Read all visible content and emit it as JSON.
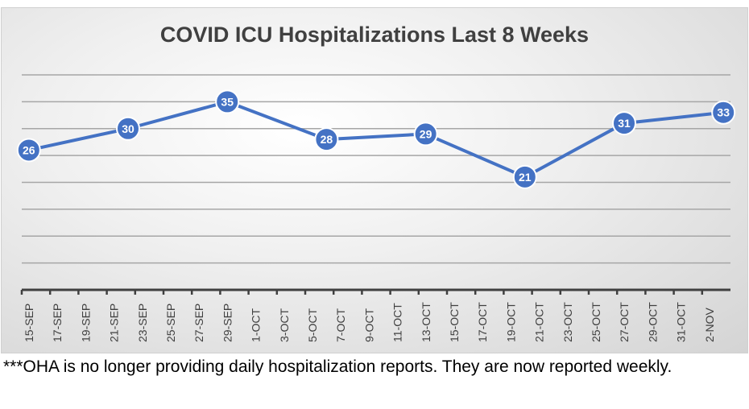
{
  "chart_data": {
    "type": "line",
    "title": "COVID ICU Hospitalizations Last 8 Weeks",
    "xlabel": "",
    "ylabel": "",
    "ylim": [
      0,
      40
    ],
    "y_gridlines": [
      5,
      10,
      15,
      20,
      25,
      30,
      35,
      40
    ],
    "grid": true,
    "x_tick_labels": [
      "15-SEP",
      "17-SEP",
      "19-SEP",
      "21-SEP",
      "23-SEP",
      "25-SEP",
      "27-SEP",
      "29-SEP",
      "1-OCT",
      "3-OCT",
      "5-OCT",
      "7-OCT",
      "9-OCT",
      "11-OCT",
      "13-OCT",
      "15-OCT",
      "17-OCT",
      "19-OCT",
      "21-OCT",
      "23-OCT",
      "25-OCT",
      "27-OCT",
      "29-OCT",
      "31-OCT",
      "2-NOV"
    ],
    "x_axis_days_total": 50,
    "series": [
      {
        "name": "ICU Hospitalizations",
        "color": "#4472C4",
        "x": [
          "15-SEP",
          "22-SEP",
          "29-SEP",
          "6-OCT",
          "13-OCT",
          "20-OCT",
          "27-OCT",
          "3-NOV"
        ],
        "x_day_index": [
          0,
          7,
          14,
          21,
          28,
          35,
          42,
          49
        ],
        "values": [
          26,
          30,
          35,
          28,
          29,
          21,
          31,
          33
        ]
      }
    ]
  },
  "footnote": "***OHA is no longer providing daily hospitalization reports.  They are now reported weekly."
}
